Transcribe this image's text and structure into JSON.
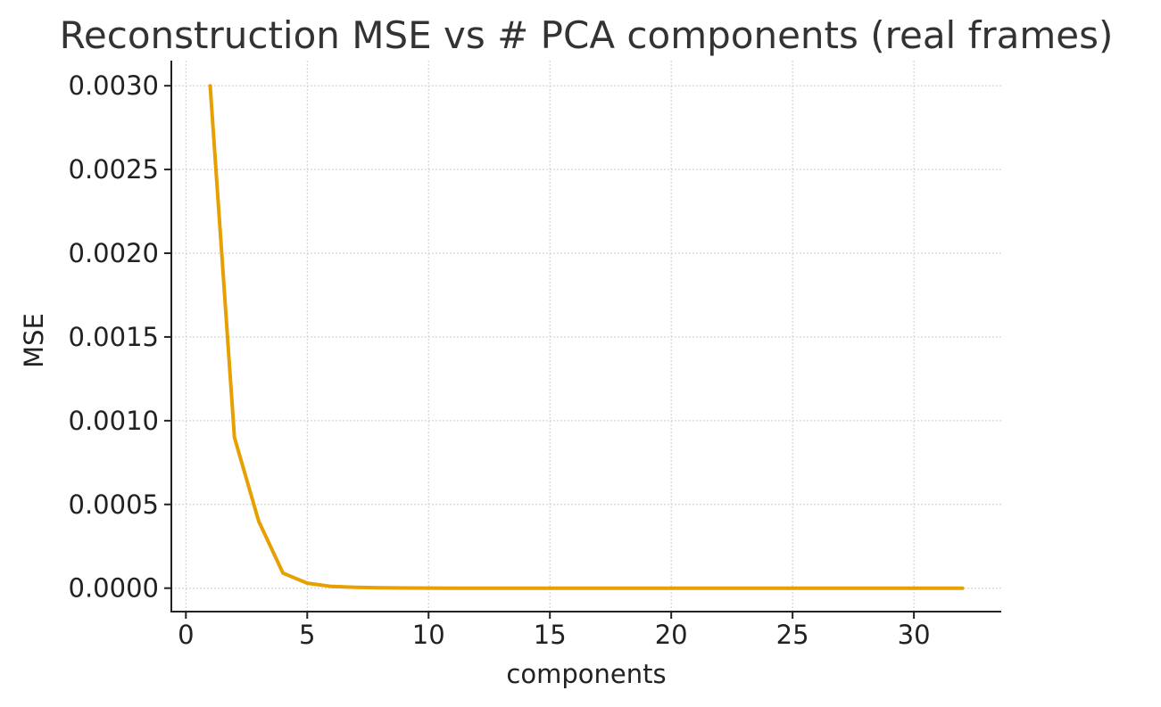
{
  "chart_data": {
    "type": "line",
    "title": "Reconstruction MSE vs # PCA components (real frames)",
    "xlabel": "components",
    "ylabel": "MSE",
    "xlim": [
      -0.6,
      33.6
    ],
    "ylim": [
      -0.00014,
      0.00315
    ],
    "xticks": [
      0,
      5,
      10,
      15,
      20,
      25,
      30
    ],
    "xtick_labels": [
      "0",
      "5",
      "10",
      "15",
      "20",
      "25",
      "30"
    ],
    "yticks": [
      0.0,
      0.0005,
      0.001,
      0.0015,
      0.002,
      0.0025,
      0.003
    ],
    "ytick_labels": [
      "0.0000",
      "0.0005",
      "0.0010",
      "0.0015",
      "0.0020",
      "0.0025",
      "0.0030"
    ],
    "grid": true,
    "series": [
      {
        "color": "#E6A000",
        "x": [
          1,
          2,
          3,
          4,
          5,
          6,
          7,
          8,
          9,
          10,
          11,
          12,
          13,
          14,
          15,
          16,
          17,
          18,
          19,
          20,
          21,
          22,
          23,
          24,
          25,
          26,
          27,
          28,
          29,
          30,
          31,
          32
        ],
        "y": [
          0.003,
          0.0009,
          0.0004,
          9e-05,
          3e-05,
          1e-05,
          5e-06,
          2e-06,
          1e-06,
          5e-07,
          0,
          0,
          0,
          0,
          0,
          0,
          0,
          0,
          0,
          0,
          0,
          0,
          0,
          0,
          0,
          0,
          0,
          0,
          0,
          0,
          0,
          0
        ]
      }
    ]
  }
}
